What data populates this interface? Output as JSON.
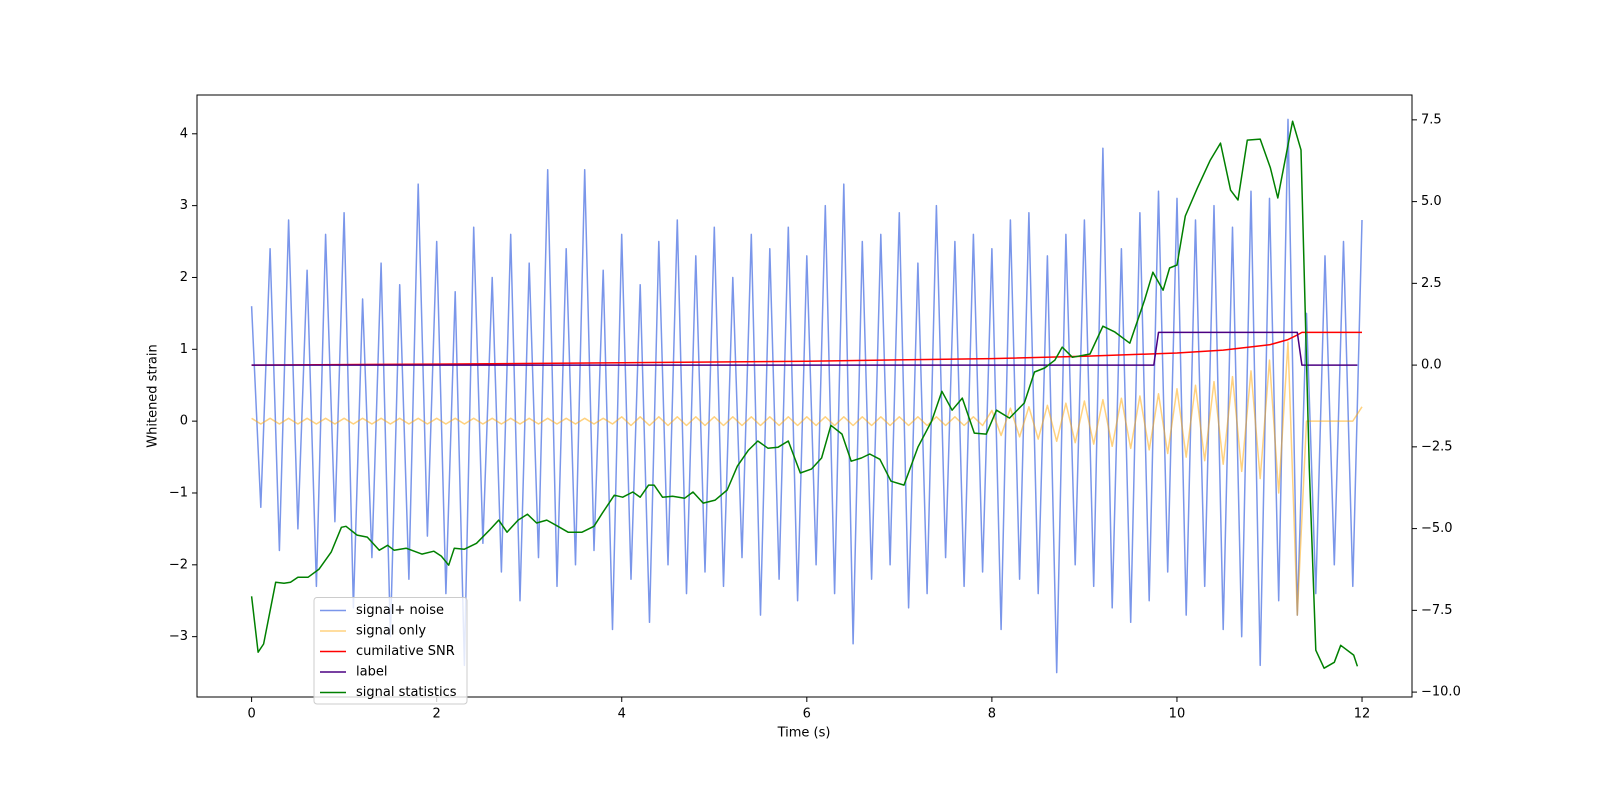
{
  "chart_data": {
    "type": "line",
    "xlabel": "Time (s)",
    "ylabel": "Whitened strain",
    "xlim": [
      -0.59,
      12.54
    ],
    "ylim": [
      -3.84,
      4.54
    ],
    "y2lim": [
      -10.15,
      8.26
    ],
    "xticks": [
      0,
      2,
      4,
      6,
      8,
      10,
      12
    ],
    "yticks": [
      {
        "value": -3,
        "label": "−3"
      },
      {
        "value": -2,
        "label": "−2"
      },
      {
        "value": -1,
        "label": "−1"
      },
      0,
      1,
      2,
      3,
      4
    ],
    "y2ticks": [
      {
        "value": -10,
        "label": "−10.0"
      },
      {
        "value": -7.5,
        "label": "−7.5"
      },
      {
        "value": -5,
        "label": "−5.0"
      },
      {
        "value": -2.5,
        "label": "−2.5"
      },
      {
        "value": 0,
        "label": "0.0"
      },
      {
        "value": 2.5,
        "label": "2.5"
      },
      {
        "value": 5,
        "label": "5.0"
      },
      {
        "value": 7.5,
        "label": "7.5"
      }
    ],
    "legend": "lower left",
    "x": [
      0,
      0.1,
      0.2,
      0.3,
      0.4,
      0.5,
      0.6,
      0.7,
      0.8,
      0.9,
      1,
      1.1,
      1.2,
      1.3,
      1.4,
      1.5,
      1.6,
      1.7,
      1.8,
      1.9,
      2,
      2.1,
      2.2,
      2.3,
      2.4,
      2.5,
      2.6,
      2.7,
      2.8,
      2.9,
      3,
      3.1,
      3.2,
      3.3,
      3.4,
      3.5,
      3.6,
      3.7,
      3.8,
      3.9,
      4,
      4.1,
      4.2,
      4.3,
      4.4,
      4.5,
      4.6,
      4.7,
      4.8,
      4.9,
      5,
      5.1,
      5.2,
      5.3,
      5.4,
      5.5,
      5.6,
      5.7,
      5.8,
      5.9,
      6,
      6.1,
      6.2,
      6.3,
      6.4,
      6.5,
      6.6,
      6.7,
      6.8,
      6.9,
      7,
      7.1,
      7.2,
      7.3,
      7.4,
      7.5,
      7.6,
      7.7,
      7.8,
      7.9,
      8,
      8.1,
      8.2,
      8.3,
      8.4,
      8.5,
      8.6,
      8.7,
      8.8,
      8.9,
      9,
      9.1,
      9.2,
      9.3,
      9.4,
      9.5,
      9.6,
      9.7,
      9.8,
      9.9,
      10,
      10.1,
      10.2,
      10.3,
      10.4,
      10.5,
      10.6,
      10.7,
      10.8,
      10.9,
      11,
      11.1,
      11.2,
      11.3,
      11.4,
      11.5,
      11.6,
      11.7,
      11.8,
      11.9,
      12
    ],
    "series": [
      {
        "name": "signal+ noise",
        "color": "royalblue",
        "alpha": 0.7,
        "values": [
          1.6,
          -1.2,
          2.4,
          -1.8,
          2.8,
          -1.5,
          2.1,
          -2.3,
          2.6,
          -1.4,
          2.9,
          -2.6,
          1.7,
          -1.9,
          2.2,
          -3.0,
          1.9,
          -2.2,
          3.3,
          -1.6,
          2.5,
          -2.4,
          1.8,
          -3.4,
          2.7,
          -1.7,
          2.0,
          -2.1,
          2.6,
          -2.5,
          2.2,
          -1.9,
          3.5,
          -2.3,
          2.4,
          -2.0,
          3.5,
          -1.8,
          2.1,
          -2.9,
          2.6,
          -2.2,
          1.9,
          -2.8,
          2.5,
          -2.0,
          2.8,
          -2.4,
          2.3,
          -2.1,
          2.7,
          -2.3,
          2.0,
          -1.9,
          2.6,
          -2.7,
          2.4,
          -2.2,
          2.7,
          -2.5,
          2.3,
          -2.0,
          3.0,
          -2.4,
          3.3,
          -3.1,
          2.5,
          -2.2,
          2.6,
          -2.0,
          2.9,
          -2.6,
          2.2,
          -2.4,
          3.0,
          -1.9,
          2.5,
          -2.3,
          2.6,
          -2.1,
          2.4,
          -2.9,
          2.8,
          -2.2,
          2.9,
          -2.4,
          2.3,
          -3.5,
          2.6,
          -2.0,
          2.8,
          -2.3,
          3.8,
          -2.6,
          2.4,
          -2.8,
          2.9,
          -2.5,
          3.2,
          -2.1,
          3.1,
          -2.7,
          2.8,
          -2.3,
          3.0,
          -2.9,
          2.7,
          -3.0,
          3.2,
          -3.4,
          3.1,
          -2.5,
          4.2,
          -2.7,
          1.5,
          -2.4,
          2.3,
          -2.0,
          2.5,
          -2.3,
          2.8
        ]
      },
      {
        "name": "signal only",
        "color": "orange",
        "alpha": 0.5,
        "values": [
          0.04,
          -0.04,
          0.04,
          -0.04,
          0.04,
          -0.04,
          0.04,
          -0.04,
          0.04,
          -0.04,
          0.04,
          -0.04,
          0.04,
          -0.04,
          0.04,
          -0.04,
          0.04,
          -0.04,
          0.04,
          -0.04,
          0.04,
          -0.04,
          0.04,
          -0.04,
          0.04,
          -0.04,
          0.04,
          -0.04,
          0.04,
          -0.04,
          0.04,
          -0.04,
          0.04,
          -0.04,
          0.04,
          -0.04,
          0.04,
          -0.04,
          0.04,
          -0.04,
          0.06,
          -0.06,
          0.06,
          -0.06,
          0.06,
          -0.06,
          0.06,
          -0.06,
          0.06,
          -0.06,
          0.06,
          -0.06,
          0.06,
          -0.06,
          0.06,
          -0.06,
          0.06,
          -0.06,
          0.06,
          -0.06,
          0.06,
          -0.06,
          0.06,
          -0.06,
          0.06,
          -0.06,
          0.06,
          -0.06,
          0.06,
          -0.06,
          0.06,
          -0.06,
          0.06,
          -0.06,
          0.06,
          -0.06,
          0.06,
          -0.06,
          0.06,
          -0.06,
          0.15,
          -0.2,
          0.18,
          -0.22,
          0.2,
          -0.25,
          0.22,
          -0.28,
          0.25,
          -0.3,
          0.28,
          -0.32,
          0.3,
          -0.35,
          0.32,
          -0.38,
          0.35,
          -0.4,
          0.38,
          -0.45,
          0.45,
          -0.5,
          0.5,
          -0.55,
          0.55,
          -0.6,
          0.62,
          -0.7,
          0.7,
          -0.8,
          0.85,
          -1.0,
          1.1,
          -2.7,
          0,
          0,
          0,
          0,
          0,
          0,
          0.2
        ]
      },
      {
        "name": "cumilative SNR",
        "color": "red",
        "axis": "y2",
        "x": [
          0,
          2,
          4,
          6,
          8,
          9,
          10,
          10.5,
          11,
          11.2,
          11.3,
          11.35,
          12
        ],
        "values": [
          0,
          0.03,
          0.07,
          0.12,
          0.2,
          0.27,
          0.37,
          0.46,
          0.62,
          0.78,
          0.92,
          1.0,
          1.0
        ]
      },
      {
        "name": "label",
        "color": "indigo",
        "axis": "y2",
        "x": [
          0,
          9.75,
          9.8,
          11.3,
          11.35,
          11.95
        ],
        "values": [
          0,
          0,
          1,
          1,
          0,
          0
        ]
      },
      {
        "name": "signal statistics",
        "color": "green",
        "axis": "y2",
        "x": [
          0,
          0.07,
          0.13,
          0.26,
          0.35,
          0.42,
          0.5,
          0.61,
          0.73,
          0.86,
          0.97,
          1.02,
          1.14,
          1.25,
          1.38,
          1.47,
          1.54,
          1.67,
          1.84,
          1.97,
          2.05,
          2.13,
          2.19,
          2.3,
          2.43,
          2.57,
          2.67,
          2.76,
          2.88,
          2.98,
          3.08,
          3.19,
          3.31,
          3.42,
          3.57,
          3.7,
          3.79,
          3.92,
          4.01,
          4.12,
          4.2,
          4.29,
          4.35,
          4.44,
          4.55,
          4.68,
          4.77,
          4.88,
          5.01,
          5.14,
          5.25,
          5.37,
          5.47,
          5.58,
          5.69,
          5.8,
          5.93,
          6.05,
          6.16,
          6.26,
          6.38,
          6.48,
          6.59,
          6.68,
          6.79,
          6.91,
          7.05,
          7.2,
          7.35,
          7.46,
          7.57,
          7.68,
          7.81,
          7.94,
          8.05,
          8.19,
          8.35,
          8.46,
          8.57,
          8.68,
          8.76,
          8.87,
          9.06,
          9.2,
          9.33,
          9.49,
          9.65,
          9.74,
          9.85,
          9.92,
          10.0,
          10.09,
          10.22,
          10.36,
          10.47,
          10.58,
          10.66,
          10.76,
          10.9,
          11.01,
          11.09,
          11.25,
          11.34,
          11.43,
          11.5,
          11.59,
          11.7,
          11.77,
          11.91,
          11.95
        ],
        "values": [
          -7.07,
          -8.78,
          -8.53,
          -6.64,
          -6.67,
          -6.64,
          -6.49,
          -6.49,
          -6.24,
          -5.72,
          -4.96,
          -4.93,
          -5.2,
          -5.26,
          -5.66,
          -5.51,
          -5.66,
          -5.6,
          -5.78,
          -5.69,
          -5.84,
          -6.12,
          -5.6,
          -5.63,
          -5.45,
          -5.05,
          -4.74,
          -5.11,
          -4.74,
          -4.56,
          -4.83,
          -4.74,
          -4.93,
          -5.11,
          -5.11,
          -4.93,
          -4.53,
          -3.98,
          -4.04,
          -3.88,
          -4.04,
          -3.67,
          -3.67,
          -4.04,
          -4.01,
          -4.07,
          -3.88,
          -4.22,
          -4.13,
          -3.82,
          -3.09,
          -2.6,
          -2.32,
          -2.54,
          -2.51,
          -2.32,
          -3.3,
          -3.18,
          -2.84,
          -1.84,
          -2.11,
          -2.94,
          -2.84,
          -2.72,
          -2.88,
          -3.55,
          -3.67,
          -2.51,
          -1.71,
          -0.8,
          -1.38,
          -1.01,
          -2.08,
          -2.11,
          -1.38,
          -1.62,
          -1.16,
          -0.21,
          -0.09,
          0.15,
          0.55,
          0.24,
          0.34,
          1.19,
          1.01,
          0.67,
          1.99,
          2.84,
          2.29,
          2.97,
          3.06,
          4.56,
          5.41,
          6.27,
          6.79,
          5.35,
          5.05,
          6.88,
          6.91,
          6.03,
          5.11,
          7.46,
          6.58,
          -3.15,
          -8.72,
          -9.27,
          -9.09,
          -8.57,
          -8.87,
          -9.21
        ]
      }
    ]
  }
}
